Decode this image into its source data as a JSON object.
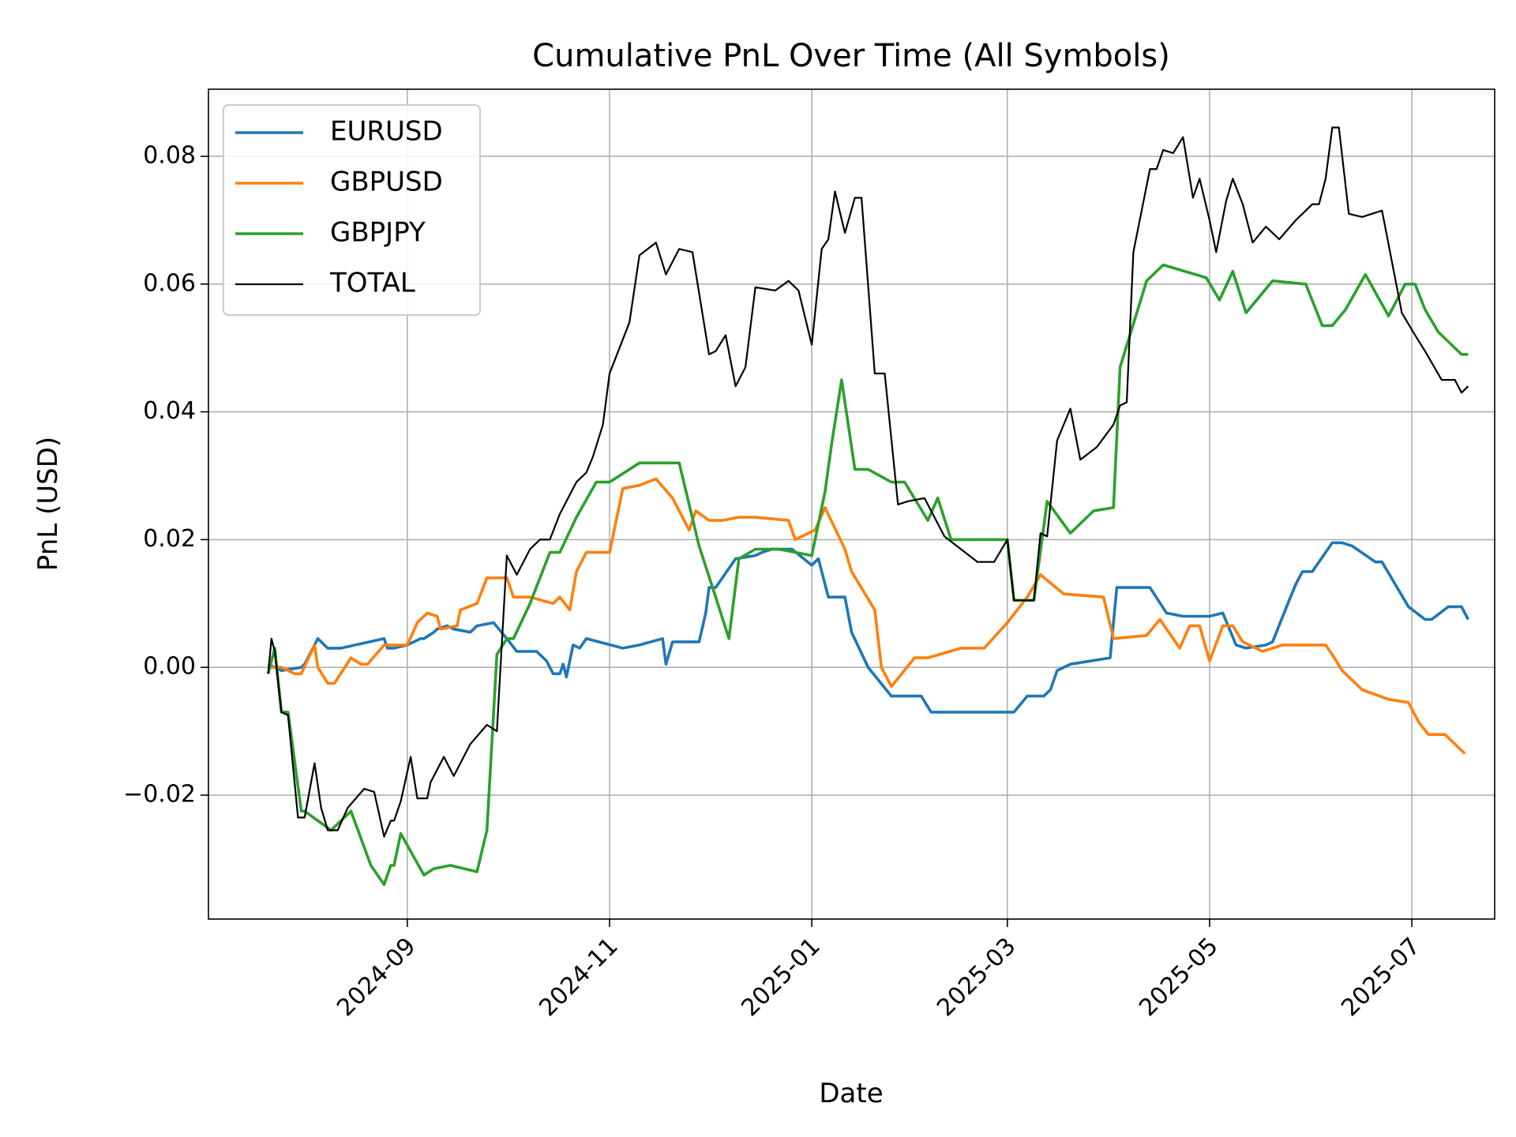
{
  "chart_data": {
    "type": "line",
    "title": "Cumulative PnL Over Time (All Symbols)",
    "xlabel": "Date",
    "ylabel": "PnL (USD)",
    "x_type": "date",
    "xlim": [
      "2024-07-03",
      "2025-07-26"
    ],
    "ylim": [
      -0.0394,
      0.0905
    ],
    "x_ticks": [
      "2024-09-01",
      "2024-11-01",
      "2025-01-01",
      "2025-03-01",
      "2025-05-01",
      "2025-07-01"
    ],
    "x_tick_labels": [
      "2024-09",
      "2024-11",
      "2025-01",
      "2025-03",
      "2025-05",
      "2025-07"
    ],
    "y_ticks": [
      -0.02,
      0.0,
      0.02,
      0.04,
      0.06,
      0.08
    ],
    "y_tick_labels": [
      "−0.02",
      "0.00",
      "0.02",
      "0.04",
      "0.06",
      "0.08"
    ],
    "grid": true,
    "legend_position": "top-left",
    "series": [
      {
        "name": "EURUSD",
        "color": "#1f77b4",
        "x": [
          "2024-07-21",
          "2024-07-23",
          "2024-07-25",
          "2024-07-31",
          "2024-08-01",
          "2024-08-05",
          "2024-08-08",
          "2024-08-10",
          "2024-08-11",
          "2024-08-12",
          "2024-08-25",
          "2024-08-26",
          "2024-08-28",
          "2024-09-01",
          "2024-09-05",
          "2024-09-06",
          "2024-09-09",
          "2024-09-10",
          "2024-09-13",
          "2024-09-15",
          "2024-09-20",
          "2024-09-22",
          "2024-09-27",
          "2024-10-01",
          "2024-10-04",
          "2024-10-10",
          "2024-10-13",
          "2024-10-15",
          "2024-10-17",
          "2024-10-18",
          "2024-10-19",
          "2024-10-21",
          "2024-10-23",
          "2024-10-25",
          "2024-11-05",
          "2024-11-10",
          "2024-11-17",
          "2024-11-18",
          "2024-11-20",
          "2024-11-28",
          "2024-11-30",
          "2024-12-01",
          "2024-12-03",
          "2024-12-09",
          "2024-12-15",
          "2024-12-17",
          "2024-12-20",
          "2024-12-26",
          "2025-01-01",
          "2025-01-03",
          "2025-01-06",
          "2025-01-11",
          "2025-01-13",
          "2025-01-18",
          "2025-01-25",
          "2025-02-03",
          "2025-02-06",
          "2025-02-20",
          "2025-03-03",
          "2025-03-07",
          "2025-03-12",
          "2025-03-14",
          "2025-03-16",
          "2025-03-20",
          "2025-04-01",
          "2025-04-03",
          "2025-04-13",
          "2025-04-18",
          "2025-04-23",
          "2025-05-01",
          "2025-05-05",
          "2025-05-09",
          "2025-05-12",
          "2025-05-18",
          "2025-05-20",
          "2025-05-25",
          "2025-05-27",
          "2025-05-29",
          "2025-06-01",
          "2025-06-07",
          "2025-06-10",
          "2025-06-13",
          "2025-06-20",
          "2025-06-22",
          "2025-06-30",
          "2025-07-05",
          "2025-07-07",
          "2025-07-12",
          "2025-07-16",
          "2025-07-18"
        ],
        "values": [
          0.0005,
          0.0,
          -0.0005,
          0.0,
          0.0005,
          0.0045,
          0.003,
          0.003,
          0.003,
          0.003,
          0.0045,
          0.003,
          0.003,
          0.0035,
          0.0045,
          0.0045,
          0.0055,
          0.006,
          0.0065,
          0.006,
          0.0055,
          0.0065,
          0.007,
          0.0045,
          0.0025,
          0.0025,
          0.001,
          -0.001,
          -0.001,
          0.0005,
          -0.0015,
          0.0035,
          0.003,
          0.0045,
          0.003,
          0.0035,
          0.0045,
          0.0005,
          0.004,
          0.004,
          0.0085,
          0.0125,
          0.0125,
          0.017,
          0.0175,
          0.018,
          0.0185,
          0.0185,
          0.016,
          0.017,
          0.011,
          0.011,
          0.0055,
          0.0,
          -0.0045,
          -0.0045,
          -0.007,
          -0.007,
          -0.007,
          -0.0045,
          -0.0045,
          -0.0035,
          -0.0005,
          0.0005,
          0.0015,
          0.0125,
          0.0125,
          0.0085,
          0.008,
          0.008,
          0.0085,
          0.0035,
          0.003,
          0.0035,
          0.004,
          0.0105,
          0.013,
          0.015,
          0.015,
          0.0195,
          0.0195,
          0.019,
          0.0165,
          0.0165,
          0.0095,
          0.0075,
          0.0075,
          0.0095,
          0.0095,
          0.0075
        ]
      },
      {
        "name": "GBPUSD",
        "color": "#ff7f0e",
        "x": [
          "2024-07-21",
          "2024-07-22",
          "2024-07-25",
          "2024-07-29",
          "2024-07-31",
          "2024-08-04",
          "2024-08-05",
          "2024-08-08",
          "2024-08-10",
          "2024-08-15",
          "2024-08-18",
          "2024-08-20",
          "2024-08-25",
          "2024-08-26",
          "2024-09-01",
          "2024-09-04",
          "2024-09-07",
          "2024-09-10",
          "2024-09-11",
          "2024-09-16",
          "2024-09-17",
          "2024-09-22",
          "2024-09-25",
          "2024-10-01",
          "2024-10-03",
          "2024-10-08",
          "2024-10-15",
          "2024-10-17",
          "2024-10-20",
          "2024-10-22",
          "2024-10-25",
          "2024-11-01",
          "2024-11-05",
          "2024-11-10",
          "2024-11-15",
          "2024-11-20",
          "2024-11-25",
          "2024-11-27",
          "2024-12-01",
          "2024-12-05",
          "2024-12-10",
          "2024-12-15",
          "2024-12-25",
          "2024-12-27",
          "2025-01-02",
          "2025-01-05",
          "2025-01-11",
          "2025-01-13",
          "2025-01-20",
          "2025-01-22",
          "2025-01-25",
          "2025-02-01",
          "2025-02-05",
          "2025-02-15",
          "2025-02-22",
          "2025-03-01",
          "2025-03-07",
          "2025-03-11",
          "2025-03-18",
          "2025-03-30",
          "2025-04-02",
          "2025-04-12",
          "2025-04-16",
          "2025-04-20",
          "2025-04-22",
          "2025-04-25",
          "2025-04-28",
          "2025-05-01",
          "2025-05-05",
          "2025-05-08",
          "2025-05-11",
          "2025-05-17",
          "2025-05-23",
          "2025-06-05",
          "2025-06-07",
          "2025-06-10",
          "2025-06-16",
          "2025-06-24",
          "2025-06-30",
          "2025-07-03",
          "2025-07-06",
          "2025-07-11",
          "2025-07-17"
        ],
        "values": [
          0.0,
          0.0,
          0.0,
          -0.001,
          -0.001,
          0.0035,
          0.0,
          -0.0025,
          -0.0025,
          0.0015,
          0.0005,
          0.0005,
          0.0035,
          0.0035,
          0.0035,
          0.007,
          0.0085,
          0.008,
          0.006,
          0.0065,
          0.009,
          0.01,
          0.014,
          0.014,
          0.011,
          0.011,
          0.01,
          0.011,
          0.009,
          0.015,
          0.018,
          0.018,
          0.028,
          0.0285,
          0.0295,
          0.0265,
          0.0215,
          0.0245,
          0.023,
          0.023,
          0.0235,
          0.0235,
          0.023,
          0.02,
          0.0215,
          0.025,
          0.0185,
          0.015,
          0.009,
          0.0,
          -0.003,
          0.0015,
          0.0015,
          0.003,
          0.003,
          0.007,
          0.011,
          0.0145,
          0.0115,
          0.011,
          0.0045,
          0.005,
          0.0075,
          0.0045,
          0.003,
          0.0065,
          0.0065,
          0.001,
          0.0065,
          0.0065,
          0.004,
          0.0025,
          0.0035,
          0.0035,
          0.002,
          -0.0005,
          -0.0035,
          -0.005,
          -0.0055,
          -0.0085,
          -0.0105,
          -0.0105,
          -0.0135
        ]
      },
      {
        "name": "GBPJPY",
        "color": "#2ca02c",
        "x": [
          "2024-07-21",
          "2024-07-23",
          "2024-07-25",
          "2024-07-27",
          "2024-07-31",
          "2024-08-01",
          "2024-08-09",
          "2024-08-15",
          "2024-08-21",
          "2024-08-25",
          "2024-08-27",
          "2024-08-28",
          "2024-08-30",
          "2024-09-06",
          "2024-09-09",
          "2024-09-14",
          "2024-09-22",
          "2024-09-25",
          "2024-09-28",
          "2024-10-01",
          "2024-10-03",
          "2024-10-08",
          "2024-10-14",
          "2024-10-17",
          "2024-10-22",
          "2024-10-28",
          "2024-11-01",
          "2024-11-10",
          "2024-11-22",
          "2024-11-28",
          "2024-12-03",
          "2024-12-07",
          "2024-12-10",
          "2024-12-15",
          "2024-12-22",
          "2025-01-01",
          "2025-01-05",
          "2025-01-07",
          "2025-01-10",
          "2025-01-14",
          "2025-01-18",
          "2025-01-25",
          "2025-01-29",
          "2025-02-05",
          "2025-02-08",
          "2025-02-12",
          "2025-03-01",
          "2025-03-03",
          "2025-03-09",
          "2025-03-13",
          "2025-03-20",
          "2025-03-27",
          "2025-04-02",
          "2025-04-04",
          "2025-04-12",
          "2025-04-17",
          "2025-04-30",
          "2025-05-04",
          "2025-05-08",
          "2025-05-12",
          "2025-05-20",
          "2025-05-30",
          "2025-06-04",
          "2025-06-07",
          "2025-06-11",
          "2025-06-17",
          "2025-06-24",
          "2025-06-29",
          "2025-07-02",
          "2025-07-05",
          "2025-07-09",
          "2025-07-16",
          "2025-07-18"
        ],
        "values": [
          -0.001,
          0.003,
          -0.007,
          -0.007,
          -0.0225,
          -0.0225,
          -0.0255,
          -0.0225,
          -0.031,
          -0.034,
          -0.031,
          -0.031,
          -0.026,
          -0.0325,
          -0.0315,
          -0.031,
          -0.032,
          -0.0255,
          0.002,
          0.0045,
          0.0045,
          0.01,
          0.018,
          0.018,
          0.0235,
          0.029,
          0.029,
          0.032,
          0.032,
          0.019,
          0.011,
          0.0045,
          0.017,
          0.0185,
          0.0185,
          0.0175,
          0.0275,
          0.035,
          0.045,
          0.031,
          0.031,
          0.029,
          0.029,
          0.023,
          0.0265,
          0.02,
          0.02,
          0.0105,
          0.0105,
          0.026,
          0.021,
          0.0245,
          0.025,
          0.047,
          0.0605,
          0.063,
          0.061,
          0.0575,
          0.062,
          0.0555,
          0.0605,
          0.06,
          0.0535,
          0.0535,
          0.056,
          0.0615,
          0.055,
          0.06,
          0.06,
          0.056,
          0.0525,
          0.049,
          0.049
        ]
      },
      {
        "name": "TOTAL",
        "color": "#000000",
        "x": [
          "2024-07-21",
          "2024-07-22",
          "2024-07-23",
          "2024-07-25",
          "2024-07-27",
          "2024-07-30",
          "2024-08-01",
          "2024-08-04",
          "2024-08-06",
          "2024-08-08",
          "2024-08-11",
          "2024-08-14",
          "2024-08-19",
          "2024-08-22",
          "2024-08-25",
          "2024-08-27",
          "2024-08-28",
          "2024-08-30",
          "2024-09-02",
          "2024-09-04",
          "2024-09-07",
          "2024-09-08",
          "2024-09-12",
          "2024-09-15",
          "2024-09-20",
          "2024-09-25",
          "2024-09-28",
          "2024-10-01",
          "2024-10-04",
          "2024-10-08",
          "2024-10-11",
          "2024-10-14",
          "2024-10-17",
          "2024-10-20",
          "2024-10-22",
          "2024-10-25",
          "2024-10-27",
          "2024-10-30",
          "2024-11-01",
          "2024-11-04",
          "2024-11-07",
          "2024-11-10",
          "2024-11-15",
          "2024-11-18",
          "2024-11-22",
          "2024-11-26",
          "2024-12-01",
          "2024-12-03",
          "2024-12-06",
          "2024-12-09",
          "2024-12-12",
          "2024-12-15",
          "2024-12-21",
          "2024-12-25",
          "2024-12-28",
          "2025-01-01",
          "2025-01-04",
          "2025-01-06",
          "2025-01-08",
          "2025-01-11",
          "2025-01-14",
          "2025-01-16",
          "2025-01-20",
          "2025-01-23",
          "2025-01-27",
          "2025-01-30",
          "2025-02-04",
          "2025-02-10",
          "2025-02-20",
          "2025-02-25",
          "2025-03-01",
          "2025-03-03",
          "2025-03-09",
          "2025-03-11",
          "2025-03-13",
          "2025-03-16",
          "2025-03-20",
          "2025-03-23",
          "2025-03-28",
          "2025-04-02",
          "2025-04-04",
          "2025-04-06",
          "2025-04-08",
          "2025-04-13",
          "2025-04-15",
          "2025-04-17",
          "2025-04-20",
          "2025-04-23",
          "2025-04-26",
          "2025-04-28",
          "2025-05-01",
          "2025-05-03",
          "2025-05-06",
          "2025-05-08",
          "2025-05-11",
          "2025-05-14",
          "2025-05-18",
          "2025-05-22",
          "2025-05-27",
          "2025-06-01",
          "2025-06-03",
          "2025-06-05",
          "2025-06-07",
          "2025-06-09",
          "2025-06-12",
          "2025-06-16",
          "2025-06-22",
          "2025-06-28",
          "2025-07-02",
          "2025-07-05",
          "2025-07-10",
          "2025-07-14",
          "2025-07-16",
          "2025-07-18"
        ],
        "values": [
          -0.001,
          0.0045,
          0.0025,
          -0.007,
          -0.0075,
          -0.0235,
          -0.0235,
          -0.015,
          -0.022,
          -0.0255,
          -0.0255,
          -0.022,
          -0.019,
          -0.0195,
          -0.0265,
          -0.024,
          -0.024,
          -0.021,
          -0.014,
          -0.0205,
          -0.0205,
          -0.018,
          -0.014,
          -0.017,
          -0.012,
          -0.009,
          -0.01,
          0.0175,
          0.0145,
          0.0185,
          0.02,
          0.02,
          0.024,
          0.027,
          0.029,
          0.0305,
          0.033,
          0.038,
          0.046,
          0.05,
          0.054,
          0.0645,
          0.0665,
          0.0615,
          0.0655,
          0.065,
          0.049,
          0.0495,
          0.052,
          0.044,
          0.047,
          0.0595,
          0.059,
          0.0605,
          0.059,
          0.0505,
          0.0655,
          0.067,
          0.0745,
          0.068,
          0.0735,
          0.0735,
          0.046,
          0.046,
          0.0255,
          0.026,
          0.0265,
          0.0205,
          0.0165,
          0.0165,
          0.02,
          0.0105,
          0.0105,
          0.021,
          0.0205,
          0.0355,
          0.0405,
          0.0325,
          0.0345,
          0.038,
          0.041,
          0.0415,
          0.065,
          0.078,
          0.078,
          0.081,
          0.0805,
          0.083,
          0.0735,
          0.0765,
          0.07,
          0.065,
          0.073,
          0.0765,
          0.0725,
          0.0665,
          0.069,
          0.067,
          0.07,
          0.0725,
          0.0725,
          0.0765,
          0.0845,
          0.0845,
          0.071,
          0.0705,
          0.0715,
          0.0555,
          0.052,
          0.0495,
          0.045,
          0.045,
          0.043,
          0.044
        ]
      }
    ]
  }
}
